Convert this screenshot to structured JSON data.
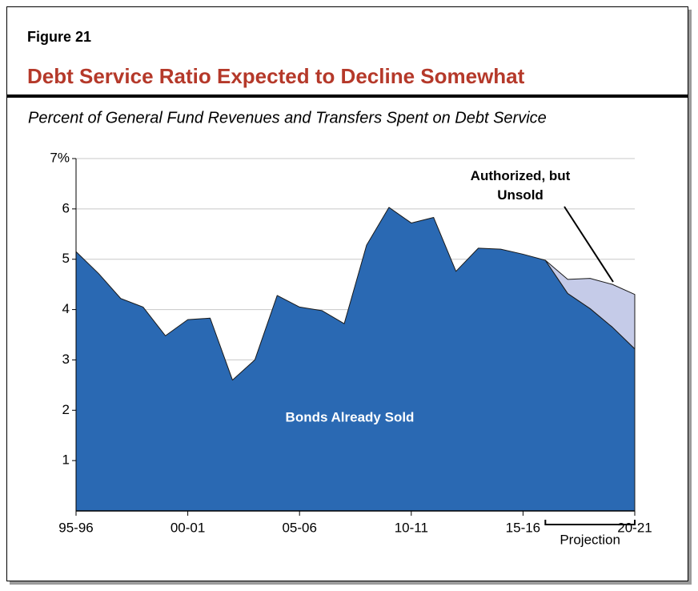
{
  "chart_data": {
    "type": "stacked_area",
    "figure_label": "Figure 21",
    "title": "Debt Service Ratio Expected to Decline Somewhat",
    "subtitle": "Percent of General Fund Revenues and Transfers Spent on Debt Service",
    "categories": [
      "95-96",
      null,
      null,
      null,
      null,
      "00-01",
      null,
      null,
      null,
      null,
      "05-06",
      null,
      null,
      null,
      null,
      "10-11",
      null,
      null,
      null,
      null,
      "15-16",
      null,
      null,
      null,
      null,
      "20-21"
    ],
    "series": [
      {
        "name": "Bonds Already Sold",
        "color": "#2a69b3",
        "values": [
          5.15,
          4.72,
          4.22,
          4.05,
          3.48,
          3.8,
          3.83,
          2.6,
          3.0,
          4.28,
          4.05,
          3.98,
          3.72,
          5.28,
          6.03,
          5.72,
          5.83,
          4.76,
          5.22,
          5.2,
          5.1,
          4.98,
          4.32,
          4.02,
          3.65,
          3.22
        ]
      },
      {
        "name": "Authorized, but Unsold",
        "color": "#c5cbe8",
        "values": [
          null,
          null,
          null,
          null,
          null,
          null,
          null,
          null,
          null,
          null,
          null,
          null,
          null,
          null,
          null,
          null,
          null,
          null,
          null,
          null,
          null,
          0,
          0.28,
          0.6,
          0.85,
          1.08
        ]
      }
    ],
    "ylim": [
      0,
      7
    ],
    "yticks": [
      1,
      2,
      3,
      4,
      5,
      6,
      {
        "value": 7,
        "label": "7%"
      }
    ],
    "grid": true,
    "annotations": [
      {
        "label": "Projection",
        "from": "16-17",
        "to": "20-21"
      }
    ]
  }
}
